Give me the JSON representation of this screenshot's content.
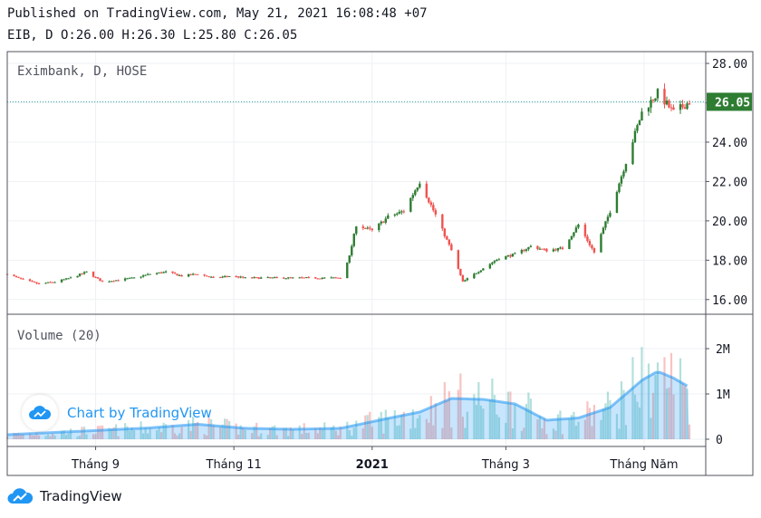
{
  "header": {
    "published": "Published on TradingView.com, May 21, 2021 16:08:48 +07",
    "ohlc": "EIB, D O:26.00 H:26.30 L:25.80 C:26.05"
  },
  "footer": {
    "brand": "TradingView"
  },
  "watermark": {
    "text": "Chart by TradingView"
  },
  "colors": {
    "up": "#26a69a",
    "upCandle": "#2e7d32",
    "down": "#ef5350",
    "volumeMA": "#2196f3",
    "priceLine": "#26a69a"
  },
  "chart_data": {
    "type": "candlestick",
    "title": "Eximbank, D, HOSE",
    "last_price": 26.05,
    "last_price_label": "26.05",
    "price_axis": {
      "ticks": [
        "16.00",
        "18.00",
        "20.00",
        "22.00",
        "24.00",
        "26.00",
        "28.00"
      ],
      "range": [
        15.3,
        28.6
      ]
    },
    "time_axis": {
      "labels": [
        {
          "text": "Tháng 9",
          "date": "2020-09-01",
          "bold": false
        },
        {
          "text": "Tháng 11",
          "date": "2020-11-01",
          "bold": false
        },
        {
          "text": "2021",
          "date": "2021-01-01",
          "bold": true
        },
        {
          "text": "Tháng 3",
          "date": "2021-03-01",
          "bold": false
        },
        {
          "text": "Tháng Năm",
          "date": "2021-05-01",
          "bold": false
        }
      ],
      "start": "2020-07-24",
      "end": "2021-05-21"
    },
    "volume": {
      "label": "Volume (20)",
      "ticks": [
        "0",
        "1M",
        "2M"
      ],
      "range": [
        0,
        2600000
      ]
    },
    "close_path": [
      [
        "2020-07-24",
        17.3
      ],
      [
        "2020-07-31",
        17.0
      ],
      [
        "2020-08-07",
        16.8
      ],
      [
        "2020-08-14",
        16.9
      ],
      [
        "2020-08-21",
        17.1
      ],
      [
        "2020-08-28",
        17.4
      ],
      [
        "2020-09-04",
        16.9
      ],
      [
        "2020-09-11",
        17.0
      ],
      [
        "2020-09-18",
        17.1
      ],
      [
        "2020-09-25",
        17.3
      ],
      [
        "2020-10-02",
        17.4
      ],
      [
        "2020-10-09",
        17.2
      ],
      [
        "2020-10-16",
        17.3
      ],
      [
        "2020-10-23",
        17.1
      ],
      [
        "2020-10-30",
        17.2
      ],
      [
        "2020-11-06",
        17.1
      ],
      [
        "2020-11-13",
        17.1
      ],
      [
        "2020-11-20",
        17.1
      ],
      [
        "2020-11-27",
        17.1
      ],
      [
        "2020-12-04",
        17.1
      ],
      [
        "2020-12-11",
        17.1
      ],
      [
        "2020-12-18",
        17.1
      ],
      [
        "2020-12-22",
        18.2
      ],
      [
        "2020-12-25",
        19.8
      ],
      [
        "2021-01-01",
        19.5
      ],
      [
        "2021-01-08",
        20.2
      ],
      [
        "2021-01-15",
        20.5
      ],
      [
        "2021-01-22",
        22.0
      ],
      [
        "2021-01-29",
        20.3
      ],
      [
        "2021-02-05",
        18.5
      ],
      [
        "2021-02-10",
        16.9
      ],
      [
        "2021-02-19",
        17.6
      ],
      [
        "2021-02-26",
        18.1
      ],
      [
        "2021-03-05",
        18.3
      ],
      [
        "2021-03-12",
        18.7
      ],
      [
        "2021-03-19",
        18.5
      ],
      [
        "2021-03-26",
        18.6
      ],
      [
        "2021-04-02",
        19.8
      ],
      [
        "2021-04-09",
        18.4
      ],
      [
        "2021-04-16",
        20.5
      ],
      [
        "2021-04-23",
        23.0
      ],
      [
        "2021-04-30",
        25.5
      ],
      [
        "2021-05-07",
        26.5
      ],
      [
        "2021-05-14",
        25.5
      ],
      [
        "2021-05-21",
        26.05
      ]
    ],
    "volume_ma_path": [
      [
        "2020-07-24",
        100000
      ],
      [
        "2020-08-14",
        150000
      ],
      [
        "2020-09-04",
        200000
      ],
      [
        "2020-09-25",
        250000
      ],
      [
        "2020-10-16",
        330000
      ],
      [
        "2020-11-06",
        240000
      ],
      [
        "2020-11-27",
        220000
      ],
      [
        "2020-12-18",
        240000
      ],
      [
        "2021-01-08",
        460000
      ],
      [
        "2021-01-22",
        600000
      ],
      [
        "2021-02-05",
        900000
      ],
      [
        "2021-02-19",
        880000
      ],
      [
        "2021-03-05",
        780000
      ],
      [
        "2021-03-19",
        420000
      ],
      [
        "2021-04-02",
        470000
      ],
      [
        "2021-04-16",
        700000
      ],
      [
        "2021-04-30",
        1300000
      ],
      [
        "2021-05-07",
        1500000
      ],
      [
        "2021-05-14",
        1350000
      ],
      [
        "2021-05-21",
        1150000
      ]
    ]
  }
}
